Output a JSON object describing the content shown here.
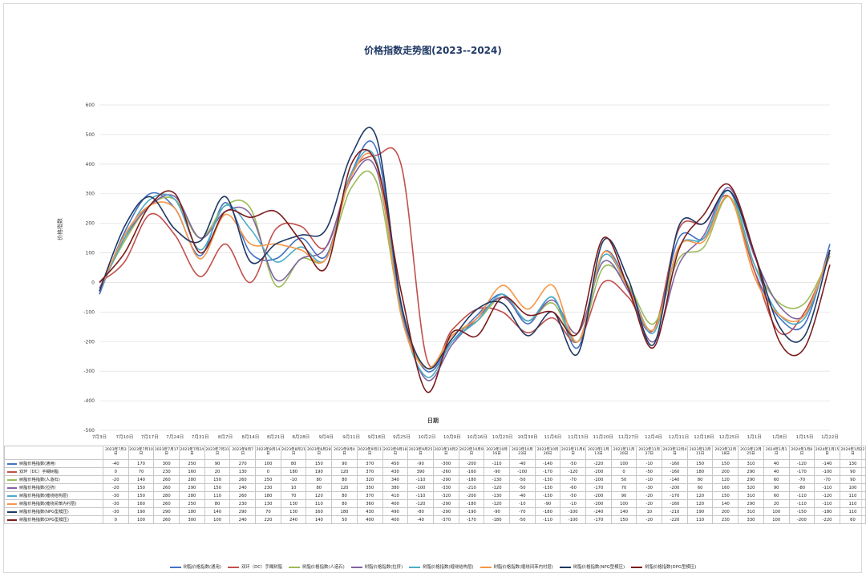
{
  "chart_data": {
    "type": "line",
    "title": "价格指数走势图(2023--2024)",
    "xlabel": "日期",
    "ylabel": "价格指数",
    "ylim": [
      -500,
      600
    ],
    "yticks": [
      -500,
      -400,
      -300,
      -200,
      -100,
      0,
      100,
      200,
      300,
      400,
      500,
      600
    ],
    "grid": true,
    "legend_position": "bottom",
    "x_axis_labels": [
      "7月3日",
      "7月10日",
      "7月17日",
      "7月24日",
      "7月31日",
      "8月7日",
      "8月14日",
      "8月21日",
      "8月28日",
      "9月4日",
      "9月11日",
      "9月18日",
      "9月25日",
      "10月2日",
      "10月9日",
      "10月16日",
      "10月23日",
      "10月30日",
      "11月6日",
      "11月13日",
      "11月20日",
      "11月27日",
      "12月4日",
      "12月11日",
      "12月18日",
      "12月25日",
      "1月1日",
      "1月8日",
      "1月15日",
      "1月22日"
    ],
    "categories": [
      "2023年7月3日",
      "2023年7月10日",
      "2023年7月17日",
      "2023年7月24日",
      "2023年7月31日",
      "2023年8月7日",
      "2023年8月14日",
      "2023年8月21日",
      "2023年8月28日",
      "2023年9月4日",
      "2023年9月11日",
      "2023年9月18日",
      "2023年9月25日",
      "2023年10月2日",
      "2023年10月9日",
      "2023年10月16日",
      "2023年10月23日",
      "2023年10月30日",
      "2023年11月6日",
      "2023年11月13日",
      "2023年11月20日",
      "2023年11月27日",
      "2023年12月4日",
      "2023年12月11日",
      "2023年12月18日",
      "2023年12月25日",
      "2024年1月1日",
      "2024年1月8日",
      "2024年1月15日",
      "2024年1月22日"
    ],
    "series": [
      {
        "name": "树脂价格指数(通用)",
        "color": "#4472c4",
        "values": [
          -40,
          170,
          300,
          250,
          90,
          270,
          100,
          80,
          150,
          90,
          370,
          450,
          -90,
          -300,
          -200,
          -110,
          -40,
          -140,
          -50,
          -220,
          100,
          -10,
          -160,
          150,
          150,
          310,
          40,
          -120,
          -140,
          130
        ]
      },
      {
        "name": "双环（DC）手糊树脂",
        "color": "#c0504d",
        "values": [
          0,
          70,
          230,
          160,
          20,
          130,
          0,
          180,
          190,
          120,
          370,
          430,
          390,
          -260,
          -160,
          -90,
          -100,
          -170,
          -120,
          -200,
          0,
          -50,
          -160,
          180,
          200,
          290,
          40,
          -170,
          -100,
          90
        ]
      },
      {
        "name": "树脂价格指数(人造石)",
        "color": "#9bbb59",
        "values": [
          -20,
          140,
          260,
          280,
          150,
          260,
          250,
          -10,
          80,
          80,
          320,
          340,
          -110,
          -290,
          -180,
          -130,
          -50,
          -130,
          -70,
          -200,
          50,
          -10,
          -140,
          80,
          120,
          290,
          60,
          -70,
          -70,
          90
        ]
      },
      {
        "name": "树脂价格指数(拉挤)",
        "color": "#8064a2",
        "values": [
          -20,
          150,
          260,
          290,
          150,
          240,
          230,
          10,
          80,
          120,
          350,
          380,
          -100,
          -330,
          -210,
          -120,
          -50,
          -130,
          -60,
          -170,
          70,
          -30,
          -200,
          60,
          160,
          320,
          90,
          -80,
          -110,
          100
        ]
      },
      {
        "name": "树脂价格指数(缠绕结构层)",
        "color": "#4bacc6",
        "values": [
          -30,
          150,
          280,
          280,
          110,
          260,
          180,
          70,
          120,
          80,
          370,
          410,
          -110,
          -320,
          -200,
          -130,
          -40,
          -130,
          -50,
          -200,
          90,
          -20,
          -170,
          120,
          150,
          310,
          60,
          -110,
          -120,
          110
        ]
      },
      {
        "name": "树脂价格指数(缠绕间苯内衬层)",
        "color": "#f79646",
        "values": [
          -30,
          160,
          260,
          250,
          80,
          230,
          130,
          130,
          110,
          80,
          360,
          400,
          -120,
          -290,
          -180,
          -120,
          -10,
          -90,
          -10,
          -200,
          100,
          -20,
          -160,
          120,
          140,
          290,
          20,
          -110,
          -110,
          110
        ]
      },
      {
        "name": "树脂价格指数(NPG型模压)",
        "color": "#1f3864",
        "values": [
          -30,
          190,
          290,
          180,
          140,
          290,
          70,
          130,
          160,
          180,
          430,
          490,
          -80,
          -290,
          -190,
          -90,
          -70,
          -180,
          -100,
          -240,
          140,
          10,
          -210,
          190,
          200,
          310,
          100,
          -150,
          -180,
          110
        ]
      },
      {
        "name": "树脂价格指数(DPG型模压)",
        "color": "#7b1c1c",
        "values": [
          0,
          100,
          260,
          300,
          100,
          240,
          220,
          240,
          140,
          50,
          400,
          400,
          -40,
          -370,
          -170,
          -180,
          -50,
          -110,
          -100,
          -170,
          150,
          -20,
          -220,
          110,
          230,
          330,
          100,
          -200,
          -220,
          60
        ]
      }
    ]
  }
}
